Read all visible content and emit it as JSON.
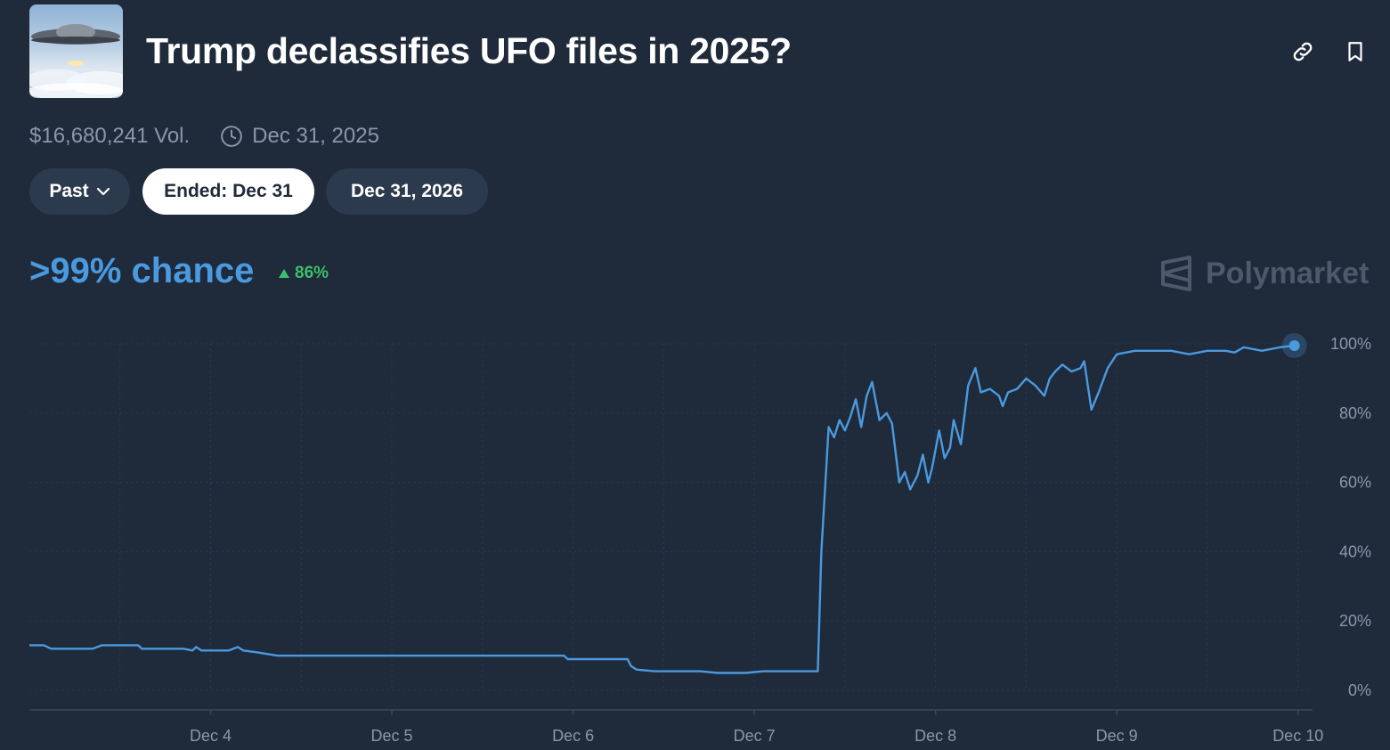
{
  "header": {
    "title": "Trump declassifies UFO files in 2025?",
    "link_icon": "link-icon",
    "bookmark_icon": "bookmark-icon",
    "thumbnail": "ufo-image"
  },
  "meta": {
    "volume": "$16,680,241 Vol.",
    "end_date": "Dec 31, 2025",
    "clock_icon": "clock-icon"
  },
  "filters": {
    "past_label": "Past",
    "ended_label": "Ended: Dec 31",
    "next_label": "Dec 31, 2026"
  },
  "summary": {
    "chance": ">99% chance",
    "change": "86%",
    "change_direction": "up"
  },
  "brand": {
    "name": "Polymarket"
  },
  "colors": {
    "background": "#1f2a3a",
    "line": "#4a9ae0",
    "up": "#3cbf6e",
    "muted": "#8a98ab"
  },
  "chart_data": {
    "type": "line",
    "x_ticks": [
      "Dec 4",
      "Dec 5",
      "Dec 6",
      "Dec 7",
      "Dec 8",
      "Dec 9",
      "Dec 10"
    ],
    "y_ticks": [
      "0%",
      "20%",
      "40%",
      "60%",
      "80%",
      "100%"
    ],
    "ylim": [
      0,
      100
    ],
    "xlim": [
      3.0,
      10.08
    ],
    "grid": true,
    "series": [
      {
        "points": [
          [
            3.0,
            13
          ],
          [
            3.08,
            13
          ],
          [
            3.12,
            12
          ],
          [
            3.2,
            12
          ],
          [
            3.35,
            12
          ],
          [
            3.4,
            13
          ],
          [
            3.6,
            13
          ],
          [
            3.62,
            12
          ],
          [
            3.85,
            12
          ],
          [
            3.9,
            11.5
          ],
          [
            3.92,
            12.5
          ],
          [
            3.95,
            11.5
          ],
          [
            4.1,
            11.5
          ],
          [
            4.15,
            12.5
          ],
          [
            4.18,
            11.5
          ],
          [
            4.25,
            11
          ],
          [
            4.37,
            10
          ],
          [
            5.0,
            10
          ],
          [
            5.5,
            10
          ],
          [
            5.95,
            10
          ],
          [
            5.97,
            9
          ],
          [
            6.3,
            9
          ],
          [
            6.32,
            7
          ],
          [
            6.35,
            6
          ],
          [
            6.45,
            5.5
          ],
          [
            6.7,
            5.5
          ],
          [
            6.8,
            5
          ],
          [
            6.95,
            5
          ],
          [
            7.05,
            5.5
          ],
          [
            7.2,
            5.5
          ],
          [
            7.35,
            5.5
          ],
          [
            7.37,
            40
          ],
          [
            7.41,
            76
          ],
          [
            7.44,
            73
          ],
          [
            7.47,
            78
          ],
          [
            7.5,
            75
          ],
          [
            7.53,
            79
          ],
          [
            7.56,
            84
          ],
          [
            7.59,
            76
          ],
          [
            7.62,
            85
          ],
          [
            7.65,
            89
          ],
          [
            7.69,
            78
          ],
          [
            7.73,
            80
          ],
          [
            7.76,
            77
          ],
          [
            7.8,
            60
          ],
          [
            7.83,
            63
          ],
          [
            7.86,
            58
          ],
          [
            7.9,
            62
          ],
          [
            7.93,
            68
          ],
          [
            7.96,
            60
          ],
          [
            7.98,
            64
          ],
          [
            8.02,
            75
          ],
          [
            8.05,
            67
          ],
          [
            8.08,
            70
          ],
          [
            8.1,
            78
          ],
          [
            8.14,
            71
          ],
          [
            8.18,
            88
          ],
          [
            8.22,
            93
          ],
          [
            8.25,
            86
          ],
          [
            8.3,
            87
          ],
          [
            8.35,
            85
          ],
          [
            8.37,
            82
          ],
          [
            8.4,
            86
          ],
          [
            8.45,
            87
          ],
          [
            8.5,
            90
          ],
          [
            8.55,
            88
          ],
          [
            8.6,
            85
          ],
          [
            8.63,
            90
          ],
          [
            8.66,
            92
          ],
          [
            8.7,
            94
          ],
          [
            8.75,
            92
          ],
          [
            8.8,
            93
          ],
          [
            8.82,
            95
          ],
          [
            8.84,
            88
          ],
          [
            8.86,
            81
          ],
          [
            8.9,
            86
          ],
          [
            8.95,
            93
          ],
          [
            9.0,
            97
          ],
          [
            9.1,
            98
          ],
          [
            9.3,
            98
          ],
          [
            9.4,
            97
          ],
          [
            9.5,
            98
          ],
          [
            9.6,
            98
          ],
          [
            9.65,
            97.5
          ],
          [
            9.7,
            99
          ],
          [
            9.8,
            98
          ],
          [
            9.9,
            99
          ],
          [
            9.98,
            99.5
          ]
        ]
      }
    ]
  }
}
